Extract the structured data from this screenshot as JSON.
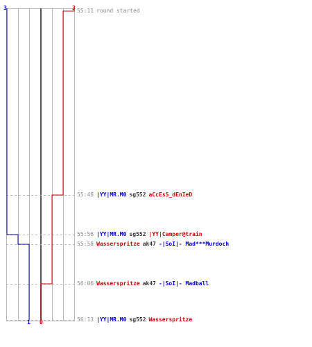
{
  "colors": {
    "team_blue": "#0000cc",
    "team_red": "#cc0000",
    "neutral": "#333333",
    "muted": "#888888",
    "grid": "#b8b8b8",
    "center_line": "#555555"
  },
  "score": {
    "blue_start": "3",
    "red_start": "3",
    "blue_end": "1",
    "red_end": "0"
  },
  "events": [
    {
      "time": "55:11",
      "note": "round started"
    },
    {
      "time": "55:48",
      "killer": "|YY|MR.M0",
      "weapon": "sg552",
      "victim": "aCcEsS_dEnIeD",
      "killer_team": "blue",
      "victim_team": "red"
    },
    {
      "time": "55:56",
      "killer": "|YY|MR.M0",
      "weapon": "sg552",
      "victim": "|YY|Camper@train",
      "killer_team": "blue",
      "victim_team": "red"
    },
    {
      "time": "55:58",
      "killer": "Wasserspritze",
      "weapon": "ak47",
      "victim": "-|SoI|- Mad***Murdoch",
      "killer_team": "red",
      "victim_team": "blue"
    },
    {
      "time": "56:06",
      "killer": "Wasserspritze",
      "weapon": "ak47",
      "victim": "-|SoI|- Madball",
      "killer_team": "red",
      "victim_team": "blue"
    },
    {
      "time": "56:13",
      "killer": "|YY|MR.M0",
      "weapon": "sg552",
      "victim": "Wasserspritze",
      "killer_team": "blue",
      "victim_team": "red"
    }
  ],
  "team_counts": {
    "blue": [
      3,
      3,
      3,
      2,
      1,
      1
    ],
    "red": [
      3,
      2,
      1,
      1,
      1,
      0
    ]
  }
}
